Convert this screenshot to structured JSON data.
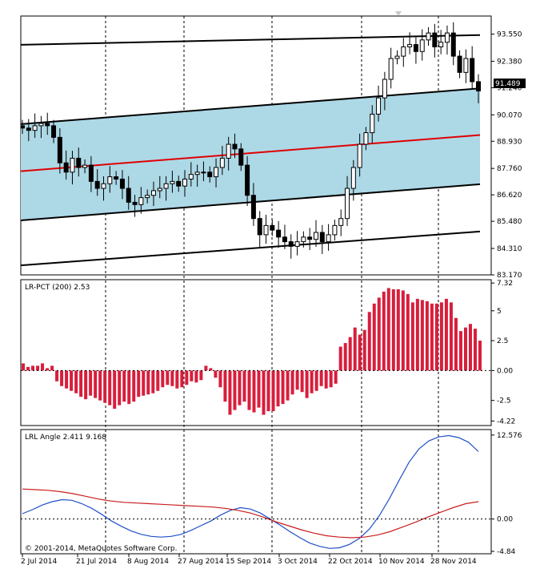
{
  "panels": {
    "main": {
      "y_ticks": [
        "93.550",
        "92.380",
        "91.240",
        "90.070",
        "88.930",
        "87.760",
        "86.620",
        "85.480",
        "84.310",
        "83.170"
      ],
      "current_price": "91.489"
    },
    "lrpct": {
      "title": "LR-PCT (200) 2.53",
      "y_ticks": [
        "7.32",
        "5",
        "2.5",
        "0.00",
        "-2.5",
        "-4.22"
      ]
    },
    "lrl": {
      "title": "LRL Angle 2.411 9.168",
      "y_ticks": [
        "12.576",
        "0.00",
        "-4.84"
      ],
      "copyright": "© 2001-2014, MetaQuotes Software Corp."
    }
  },
  "x_axis": {
    "labels": [
      "2 Jul 2014",
      "21 Jul 2014",
      "8 Aug 2014",
      "27 Aug 2014",
      "15 Sep 2014",
      "3 Oct 2014",
      "22 Oct 2014",
      "10 Nov 2014",
      "28 Nov 2014"
    ]
  },
  "colors": {
    "background": "#ffffff",
    "channel_fill": "#add8e6",
    "regression_line": "#e00000",
    "candles": "#000000",
    "histogram": "#d81e3c",
    "angle_line_blue": "#2050c8",
    "angle_line_red": "#c81e1e",
    "grid": "#000000"
  },
  "chart_data": [
    {
      "type": "candlestick",
      "title": "",
      "ylim": [
        83.17,
        94.3
      ],
      "x_categories": [
        "2 Jul 2014",
        "21 Jul 2014",
        "8 Aug 2014",
        "27 Aug 2014",
        "15 Sep 2014",
        "3 Oct 2014",
        "22 Oct 2014",
        "10 Nov 2014",
        "28 Nov 2014"
      ],
      "close_path": [
        89.5,
        89.4,
        89.6,
        89.7,
        89.6,
        89.1,
        88.0,
        87.6,
        88.2,
        87.8,
        87.9,
        87.2,
        86.9,
        87.1,
        87.4,
        87.3,
        86.9,
        86.3,
        86.2,
        86.5,
        86.6,
        86.8,
        86.9,
        87.1,
        87.2,
        87.0,
        87.3,
        87.5,
        87.6,
        87.6,
        87.4,
        87.8,
        88.2,
        88.8,
        88.6,
        87.9,
        86.6,
        85.6,
        84.9,
        85.3,
        85.1,
        84.8,
        84.6,
        84.4,
        84.6,
        84.8,
        84.7,
        85.0,
        84.6,
        84.9,
        85.3,
        85.6,
        86.9,
        87.8,
        88.8,
        89.3,
        90.1,
        90.8,
        91.6,
        92.5,
        92.6,
        93.0,
        93.1,
        92.8,
        93.3,
        93.6,
        93.0,
        93.2,
        93.6,
        92.6,
        91.9,
        92.5,
        91.5,
        91.1
      ]
    },
    {
      "type": "bar",
      "title": "LR-PCT (200) 2.53",
      "ylim": [
        -4.22,
        7.32
      ],
      "values": [
        0.6,
        0.3,
        0.4,
        0.4,
        0.6,
        0.2,
        0.4,
        -0.9,
        -1.3,
        -1.5,
        -1.7,
        -1.9,
        -2.2,
        -2.4,
        -2.1,
        -2.3,
        -2.5,
        -2.7,
        -2.9,
        -3.2,
        -2.9,
        -2.6,
        -2.8,
        -2.6,
        -2.2,
        -2.1,
        -2.0,
        -1.9,
        -1.7,
        -1.4,
        -1.2,
        -1.3,
        -1.5,
        -1.4,
        -1.2,
        -0.9,
        -1.0,
        -0.8,
        0.4,
        0.2,
        -0.6,
        -1.4,
        -2.6,
        -3.7,
        -3.3,
        -2.9,
        -2.6,
        -3.3,
        -3.5,
        -3.1,
        -3.7,
        -3.4,
        -3.4,
        -3.0,
        -2.8,
        -2.5,
        -2.0,
        -1.6,
        -1.8,
        -2.3,
        -1.9,
        -1.7,
        -1.3,
        -1.5,
        -1.4,
        -1.1,
        2.0,
        2.3,
        2.8,
        3.6,
        3.0,
        3.4,
        4.9,
        5.6,
        6.1,
        6.6,
        6.9,
        6.8,
        6.8,
        6.7,
        6.4,
        5.7,
        6.0,
        5.9,
        5.8,
        5.6,
        5.6,
        5.7,
        6.0,
        5.7,
        4.4,
        3.3,
        3.6,
        3.9,
        3.5,
        2.5
      ]
    },
    {
      "type": "line",
      "title": "LRL Angle 2.411 9.168",
      "ylim": [
        -4.84,
        12.576
      ],
      "series": [
        {
          "values": [
            0.8,
            1.4,
            2.1,
            2.6,
            2.9,
            2.8,
            2.3,
            1.6,
            0.7,
            -0.3,
            -1.1,
            -1.8,
            -2.3,
            -2.6,
            -2.7,
            -2.6,
            -2.3,
            -1.7,
            -1.0,
            -0.3,
            0.6,
            1.3,
            1.7,
            1.5,
            0.9,
            0.0,
            -0.9,
            -1.9,
            -2.8,
            -3.6,
            -4.1,
            -4.4,
            -4.3,
            -3.8,
            -2.9,
            -1.5,
            0.5,
            3.0,
            5.8,
            8.5,
            10.5,
            11.7,
            12.3,
            12.5,
            12.2,
            11.5,
            10.1
          ]
        },
        {
          "values": [
            4.5,
            4.4,
            4.3,
            4.1,
            3.8,
            3.4,
            3.0,
            2.7,
            2.5,
            2.4,
            2.3,
            2.2,
            2.1,
            2.0,
            1.9,
            1.8,
            1.6,
            1.3,
            0.9,
            0.3,
            -0.4,
            -1.0,
            -1.6,
            -2.1,
            -2.5,
            -2.7,
            -2.8,
            -2.7,
            -2.4,
            -1.9,
            -1.2,
            -0.5,
            0.3,
            1.0,
            1.7,
            2.3,
            2.6
          ]
        }
      ]
    }
  ]
}
